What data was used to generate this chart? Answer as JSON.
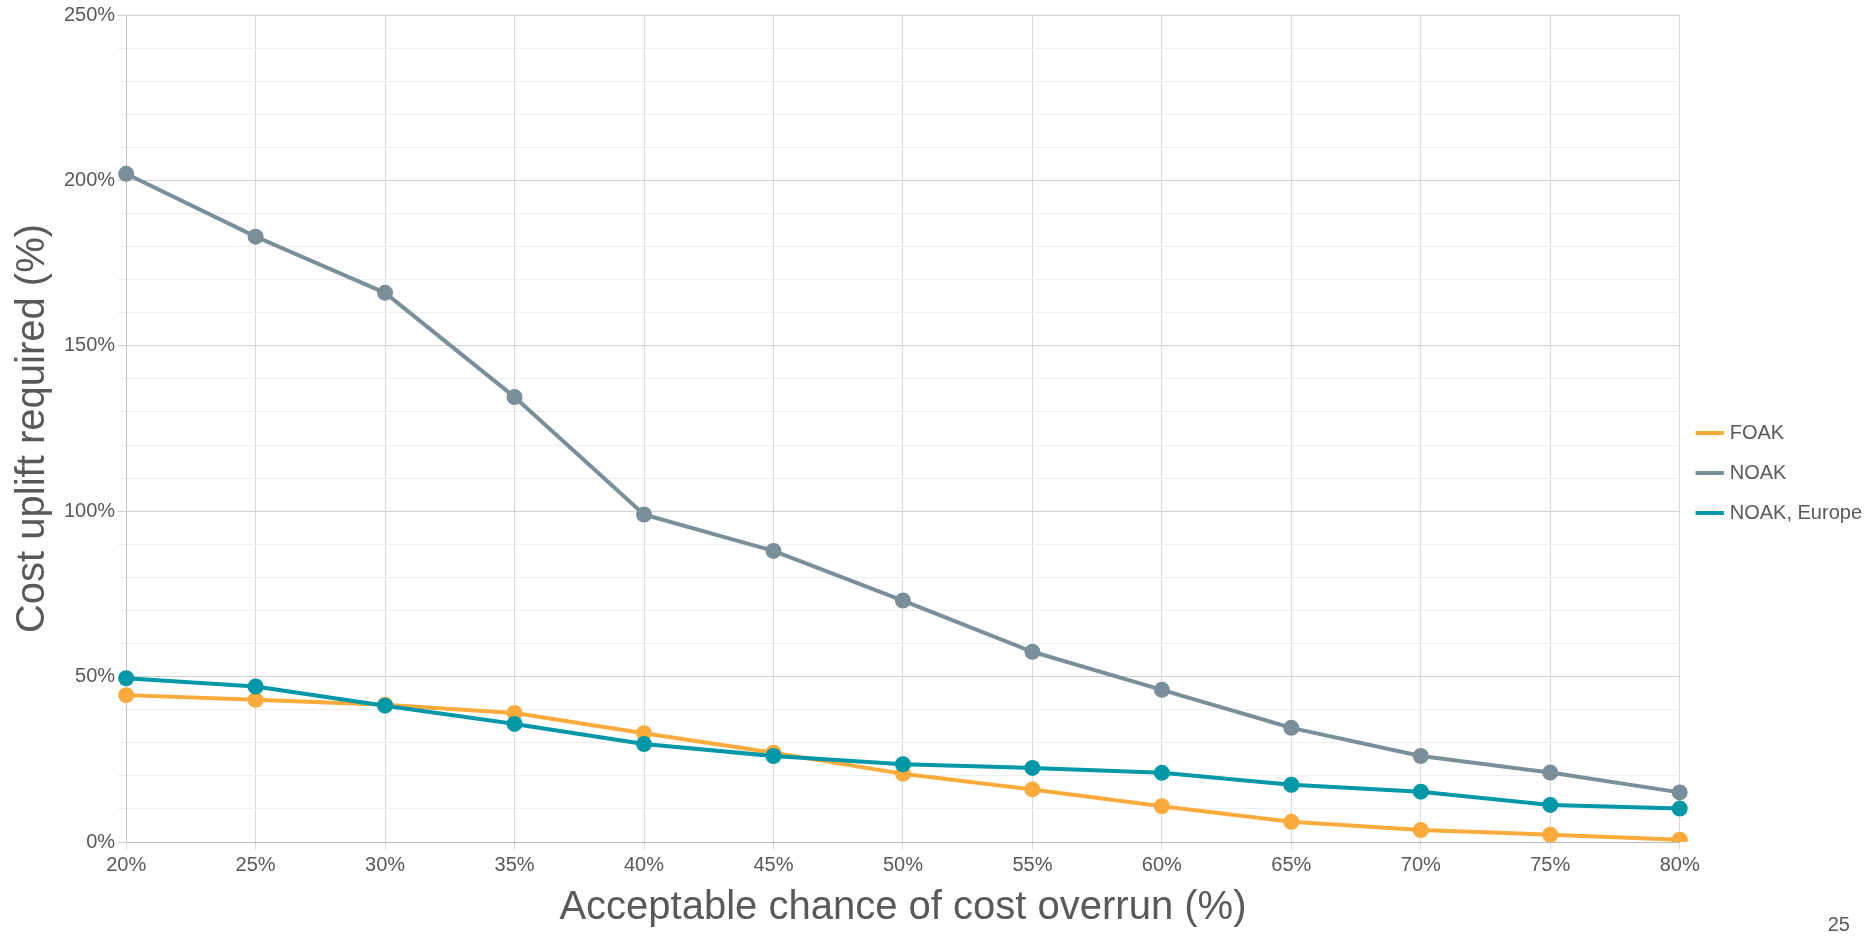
{
  "chart_data": {
    "type": "line",
    "categories": [
      "20%",
      "25%",
      "30%",
      "35%",
      "40%",
      "45%",
      "50%",
      "55%",
      "60%",
      "65%",
      "70%",
      "75%",
      "80%"
    ],
    "series": [
      {
        "name": "FOAK",
        "color": "#fbaa3c",
        "values": [
          44.4,
          43,
          41.5,
          39,
          32.9,
          27,
          20.6,
          15.9,
          10.8,
          6.1,
          3.6,
          2.2,
          0.7
        ]
      },
      {
        "name": "NOAK",
        "color": "#7a8f99",
        "values": [
          202,
          183,
          166,
          134.5,
          99,
          88,
          73,
          57.5,
          46,
          34.5,
          26,
          21,
          15
        ]
      },
      {
        "name": "NOAK, Europe",
        "color": "#0097a7",
        "values": [
          49.5,
          47,
          41.2,
          35.7,
          29.6,
          26,
          23.5,
          22.4,
          20.9,
          17.3,
          15.2,
          11.2,
          10.1
        ]
      }
    ],
    "xlabel": "Acceptable chance of cost overrun (%)",
    "ylabel": "Cost uplift required (%)",
    "ylim": [
      0,
      250
    ],
    "yticks": [
      {
        "value": 0,
        "label": "0%"
      },
      {
        "value": 10,
        "label": null
      },
      {
        "value": 20,
        "label": null
      },
      {
        "value": 30,
        "label": null
      },
      {
        "value": 40,
        "label": null
      },
      {
        "value": 50,
        "label": "50%"
      },
      {
        "value": 60,
        "label": null
      },
      {
        "value": 70,
        "label": null
      },
      {
        "value": 80,
        "label": null
      },
      {
        "value": 90,
        "label": null
      },
      {
        "value": 100,
        "label": "100%"
      },
      {
        "value": 110,
        "label": null
      },
      {
        "value": 120,
        "label": null
      },
      {
        "value": 130,
        "label": null
      },
      {
        "value": 140,
        "label": null
      },
      {
        "value": 150,
        "label": "150%"
      },
      {
        "value": 160,
        "label": null
      },
      {
        "value": 170,
        "label": null
      },
      {
        "value": 180,
        "label": null
      },
      {
        "value": 190,
        "label": null
      },
      {
        "value": 200,
        "label": "200%"
      },
      {
        "value": 210,
        "label": null
      },
      {
        "value": 220,
        "label": null
      },
      {
        "value": 230,
        "label": null
      },
      {
        "value": 240,
        "label": null
      },
      {
        "value": 250,
        "label": "250%"
      }
    ],
    "grid": true,
    "legend": "right",
    "marker": "circle",
    "line_style": "solid",
    "annotations": [
      "25"
    ]
  }
}
